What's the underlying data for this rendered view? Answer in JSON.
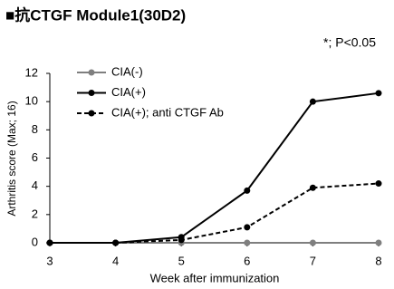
{
  "chart_data": {
    "type": "line",
    "title": "■抗CTGF Module1(30D2)",
    "annotation": "*; P<0.05",
    "x_label": "Week after immunization",
    "y_label": "Arthritis score  (Max; 16)",
    "x": [
      3,
      4,
      5,
      6,
      7,
      8
    ],
    "xlim": [
      3,
      8
    ],
    "xticks": [
      3,
      4,
      5,
      6,
      7,
      8
    ],
    "ylim": [
      0,
      12
    ],
    "yticks": [
      0,
      2,
      4,
      6,
      8,
      10,
      12
    ],
    "grid": false,
    "legend": "upper-left",
    "series": [
      {
        "name": "CIA(-)",
        "color": "#7f7f7f",
        "linestyle": "solid",
        "values": [
          0,
          0,
          0,
          0,
          0,
          0
        ]
      },
      {
        "name": "CIA(+)",
        "color": "#000000",
        "linestyle": "solid",
        "values": [
          0,
          0,
          0.4,
          3.7,
          10,
          10.6
        ]
      },
      {
        "name": "CIA(+); anti CTGF Ab",
        "color": "#000000",
        "linestyle": "dashed",
        "values": [
          0,
          0,
          0.2,
          1.1,
          3.9,
          4.2
        ]
      }
    ]
  }
}
